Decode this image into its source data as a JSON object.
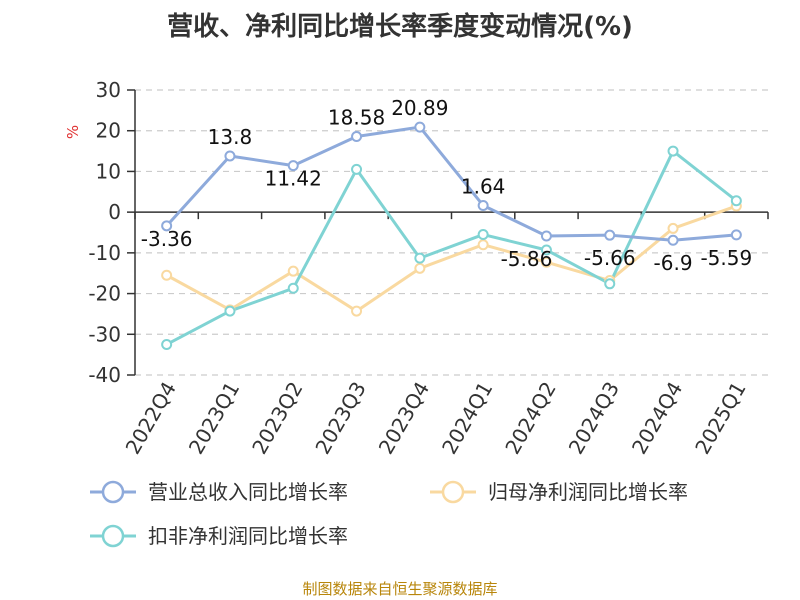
{
  "title": "营收、净利同比增长率季度变动情况(%)",
  "source_note": "制图数据来自恒生聚源数据库",
  "chart_data": {
    "type": "line",
    "title": "营收、净利同比增长率季度变动情况(%)",
    "ylabel": "%",
    "xlabel": "",
    "ylim": [
      -40,
      30
    ],
    "yticks": [
      30,
      20,
      10,
      0,
      -10,
      -20,
      -30,
      -40
    ],
    "grid": true,
    "legend_position": "bottom",
    "categories": [
      "2022Q4",
      "2023Q1",
      "2023Q2",
      "2023Q3",
      "2023Q4",
      "2024Q1",
      "2024Q2",
      "2024Q3",
      "2024Q4",
      "2025Q1"
    ],
    "series": [
      {
        "name": "营业总收入同比增长率",
        "color": "#8eaadb",
        "values": [
          -3.36,
          13.8,
          11.42,
          18.58,
          20.89,
          1.64,
          -5.86,
          -5.66,
          -6.9,
          -5.59
        ],
        "labels": [
          "-3.36",
          "13.8",
          "11.42",
          "18.58",
          "20.89",
          "1.64",
          "-5.86",
          "-5.66",
          "-6.9",
          "-5.59"
        ]
      },
      {
        "name": "归母净利润同比增长率",
        "color": "#f9d9a0",
        "values": [
          -15.5,
          -24,
          -14.5,
          -24.3,
          -13.8,
          -8.0,
          -12.3,
          -16.8,
          -4.0,
          1.5
        ]
      },
      {
        "name": "扣非净利润同比增长率",
        "color": "#7fd3d3",
        "values": [
          -32.5,
          -24.3,
          -18.7,
          10.5,
          -11.3,
          -5.5,
          -9.3,
          -17.6,
          15.0,
          2.8
        ]
      }
    ]
  }
}
